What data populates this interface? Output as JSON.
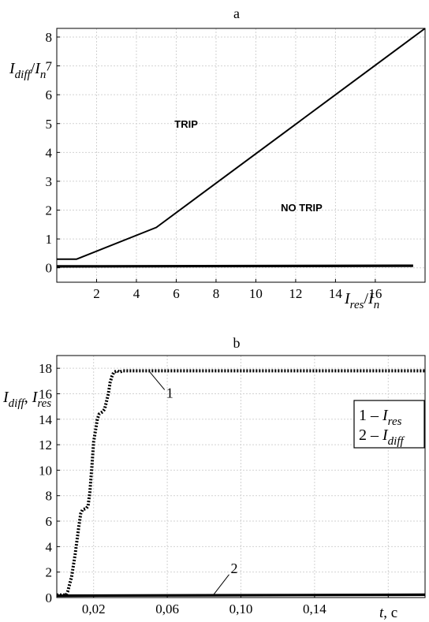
{
  "chart_data": [
    {
      "type": "line",
      "title": "a",
      "ylabel": {
        "I1": "I",
        "s1": "diff",
        "slash": "/",
        "I2": "I",
        "s2": "n"
      },
      "xlabel": {
        "I1": "I",
        "s1": "res",
        "slash": "/",
        "I2": "I",
        "s2": "n"
      },
      "xlim": [
        0,
        18.5
      ],
      "ylim": [
        -0.5,
        8.3
      ],
      "xticks": [
        2,
        4,
        6,
        8,
        10,
        12,
        14,
        16
      ],
      "yticks": [
        0,
        1,
        2,
        3,
        4,
        5,
        6,
        7,
        8
      ],
      "grid": true,
      "annotations": [
        {
          "text": "TRIP",
          "x": 6.5,
          "y": 5.0
        },
        {
          "text": "NO TRIP",
          "x": 12.3,
          "y": 2.1
        }
      ],
      "series": [
        {
          "x": [
            0,
            1,
            5,
            18.5
          ],
          "y": [
            0.3,
            0.3,
            1.4,
            8.3
          ],
          "style": "thin"
        },
        {
          "x": [
            0,
            17.9
          ],
          "y": [
            0.05,
            0.07
          ],
          "style": "thick"
        }
      ]
    },
    {
      "type": "line",
      "title": "b",
      "ylabel": {
        "I1": "I",
        "s1": "diff",
        "comma": ", ",
        "I2": "I",
        "s2": "res"
      },
      "xlabel": {
        "t": "t",
        "unit": ", c"
      },
      "xlim": [
        0,
        0.2
      ],
      "ylim": [
        0,
        19
      ],
      "xticks": [
        0.02,
        0.06,
        0.1,
        0.14,
        0.18
      ],
      "xticklabels": [
        "0,02",
        "0,06",
        "0,10",
        "0,14",
        "0,18"
      ],
      "yticks": [
        0,
        2,
        4,
        6,
        8,
        10,
        12,
        14,
        16,
        18
      ],
      "grid": true,
      "legend": {
        "position": "right",
        "entries": [
          {
            "num": "1",
            "dash": " – ",
            "I": "I",
            "sub": "res"
          },
          {
            "num": "2",
            "dash": " – ",
            "I": "I",
            "sub": "diff"
          }
        ]
      },
      "callouts": [
        {
          "label": "1",
          "series": 0,
          "x": 0.05,
          "y": 17.8
        },
        {
          "label": "2",
          "series": 1,
          "x": 0.085,
          "y": 0.2
        }
      ],
      "series": [
        {
          "x": [
            0.0,
            0.005,
            0.006,
            0.008,
            0.01,
            0.012,
            0.013,
            0.014,
            0.016,
            0.017,
            0.018,
            0.019,
            0.02,
            0.022,
            0.023,
            0.024,
            0.025,
            0.026,
            0.028,
            0.029,
            0.03,
            0.031,
            0.033,
            0.034,
            0.035,
            0.036,
            0.037,
            0.038,
            0.04,
            0.08,
            0.12,
            0.16,
            0.2
          ],
          "y": [
            0.2,
            0.2,
            0.5,
            1.6,
            3.4,
            5.6,
            6.6,
            6.9,
            7.0,
            7.2,
            8.3,
            10.2,
            12.2,
            14.0,
            14.4,
            14.5,
            14.6,
            14.8,
            16.0,
            16.9,
            17.4,
            17.7,
            17.8,
            17.7,
            17.75,
            17.8,
            17.8,
            17.8,
            17.8,
            17.8,
            17.8,
            17.8,
            17.8
          ],
          "style": "dotted"
        },
        {
          "x": [
            0.0,
            0.2
          ],
          "y": [
            0.15,
            0.22
          ],
          "style": "thick"
        }
      ]
    }
  ]
}
